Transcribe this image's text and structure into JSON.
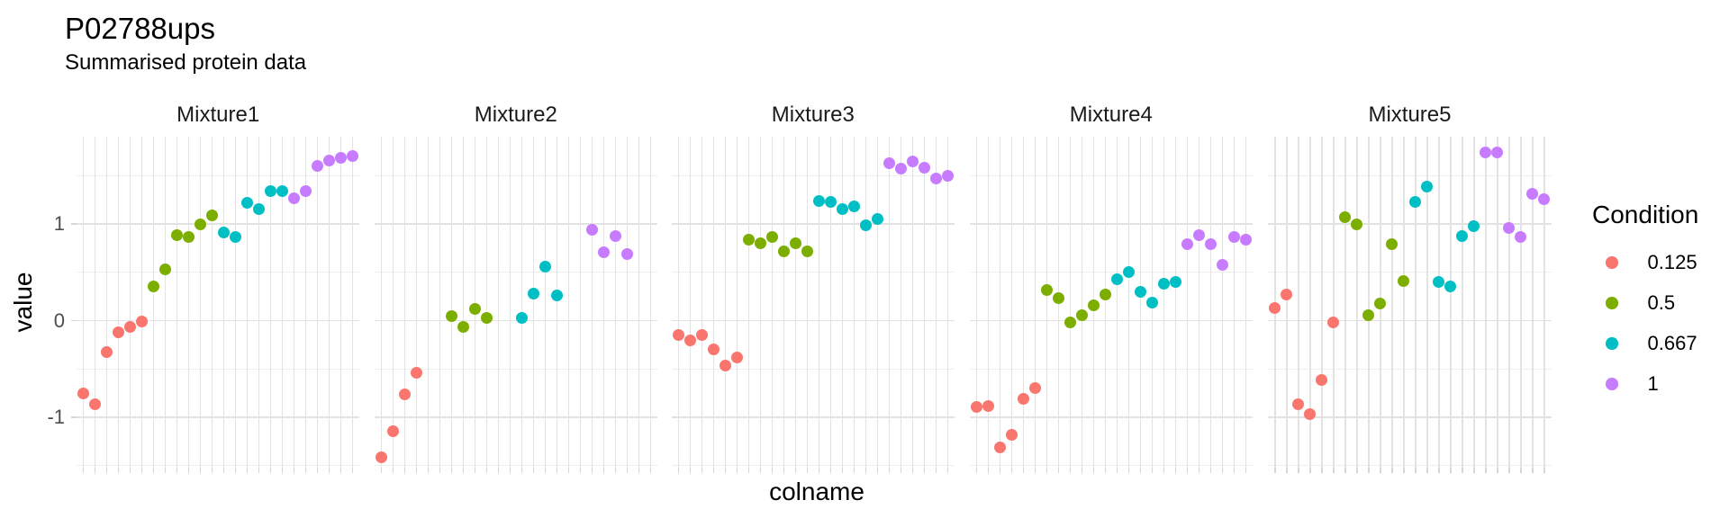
{
  "chart_data": {
    "type": "scatter",
    "title": "P02788ups",
    "subtitle": "Summarised protein data",
    "xlabel": "colname",
    "ylabel": "value",
    "ylim": [
      -1.55,
      1.9
    ],
    "y_major_ticks": [
      1,
      0,
      -1
    ],
    "y_minor_gridlines": [
      1.5,
      0.5,
      -0.5,
      -1.5
    ],
    "x_tick_labels_shown": false,
    "grid": "on",
    "columns_per_facet": 24,
    "legend": {
      "title": "Condition",
      "position": "right",
      "entries": [
        {
          "label": "0.125",
          "color": "#F8766D"
        },
        {
          "label": "0.5",
          "color": "#7CAE00"
        },
        {
          "label": "0.667",
          "color": "#00BFC4"
        },
        {
          "label": "1",
          "color": "#C77CFF"
        }
      ]
    },
    "facets": [
      {
        "label": "Mixture1",
        "series": [
          {
            "condition": "0.125",
            "start_col": 1,
            "values": [
              -0.75,
              -0.86,
              -0.32,
              -0.12,
              -0.06,
              -0.01
            ]
          },
          {
            "condition": "0.5",
            "start_col": 7,
            "values": [
              0.36,
              0.53,
              0.89,
              0.87,
              1.0,
              1.09
            ]
          },
          {
            "condition": "0.667",
            "start_col": 13,
            "values": [
              0.91,
              0.87,
              1.22,
              1.16,
              1.34,
              1.34
            ]
          },
          {
            "condition": "1",
            "start_col": 19,
            "values": [
              1.27,
              1.34,
              1.6,
              1.66,
              1.69,
              1.7
            ]
          }
        ]
      },
      {
        "label": "Mixture2",
        "series": [
          {
            "condition": "0.125",
            "start_col": 1,
            "values": [
              -1.41,
              -1.14,
              -0.76,
              -0.54
            ]
          },
          {
            "condition": "0.5",
            "start_col": 7,
            "values": [
              0.05,
              -0.06,
              0.12,
              0.03
            ]
          },
          {
            "condition": "0.667",
            "start_col": 13,
            "values": [
              0.03,
              0.28,
              0.56,
              0.26
            ]
          },
          {
            "condition": "1",
            "start_col": 19,
            "values": [
              0.94,
              0.71,
              0.88,
              0.69
            ]
          }
        ]
      },
      {
        "label": "Mixture3",
        "series": [
          {
            "condition": "0.125",
            "start_col": 1,
            "values": [
              -0.15,
              -0.2,
              -0.15,
              -0.3,
              -0.46,
              -0.38
            ]
          },
          {
            "condition": "0.5",
            "start_col": 7,
            "values": [
              0.84,
              0.8,
              0.87,
              0.72,
              0.8,
              0.72
            ]
          },
          {
            "condition": "0.667",
            "start_col": 13,
            "values": [
              1.24,
              1.23,
              1.16,
              1.18,
              0.99,
              1.05
            ]
          },
          {
            "condition": "1",
            "start_col": 19,
            "values": [
              1.63,
              1.57,
              1.65,
              1.58,
              1.47,
              1.5
            ]
          }
        ]
      },
      {
        "label": "Mixture4",
        "series": [
          {
            "condition": "0.125",
            "start_col": 1,
            "values": [
              -0.89,
              -0.88,
              -1.31,
              -1.18,
              -0.81,
              -0.7
            ]
          },
          {
            "condition": "0.5",
            "start_col": 7,
            "values": [
              0.32,
              0.23,
              -0.02,
              0.06,
              0.16,
              0.27
            ]
          },
          {
            "condition": "0.667",
            "start_col": 13,
            "values": [
              0.43,
              0.5,
              0.3,
              0.19,
              0.38,
              0.4
            ]
          },
          {
            "condition": "1",
            "start_col": 19,
            "values": [
              0.79,
              0.89,
              0.79,
              0.58,
              0.87,
              0.84
            ]
          }
        ]
      },
      {
        "label": "Mixture5",
        "series": [
          {
            "condition": "0.125",
            "start_col": 1,
            "values": [
              0.13,
              0.27,
              -0.86,
              -0.97,
              -0.61,
              -0.02
            ]
          },
          {
            "condition": "0.5",
            "start_col": 7,
            "values": [
              1.07,
              1.0,
              0.06,
              0.18,
              0.79,
              0.41
            ]
          },
          {
            "condition": "0.667",
            "start_col": 13,
            "values": [
              1.23,
              1.39,
              0.4,
              0.36,
              0.88,
              0.98
            ]
          },
          {
            "condition": "1",
            "start_col": 19,
            "values": [
              1.74,
              1.74,
              0.96,
              0.87,
              1.31,
              1.26
            ]
          }
        ]
      }
    ]
  }
}
